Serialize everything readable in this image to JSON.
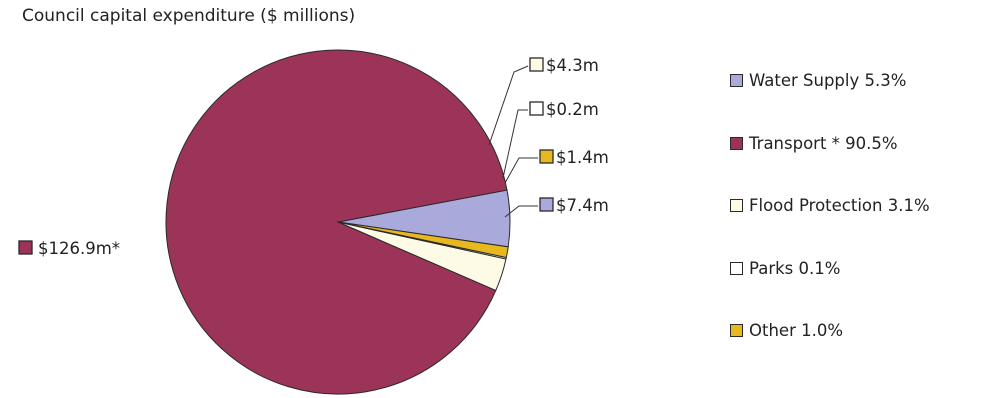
{
  "chart_data": {
    "type": "pie",
    "title": "Council capital expenditure ($ millions)",
    "slices": [
      {
        "name": "Water Supply",
        "value": 7.4,
        "data_label": "$7.4m",
        "legend_label": "Water Supply  5.3%",
        "color": "#a9a9dc"
      },
      {
        "name": "Transport",
        "value": 126.9,
        "data_label": "$126.9m*",
        "legend_label": "Transport *  90.5%",
        "color": "#9b3458"
      },
      {
        "name": "Flood Protection",
        "value": 4.3,
        "data_label": "$4.3m",
        "legend_label": "Flood Protection  3.1%",
        "color": "#fdfbe6"
      },
      {
        "name": "Parks",
        "value": 0.2,
        "data_label": "$0.2m",
        "legend_label": "Parks 0.1%",
        "color": "#ffffff"
      },
      {
        "name": "Other",
        "value": 1.4,
        "data_label": "$1.4m",
        "legend_label": "Other  1.0%",
        "color": "#e8b820"
      }
    ],
    "legend_position": "right"
  }
}
